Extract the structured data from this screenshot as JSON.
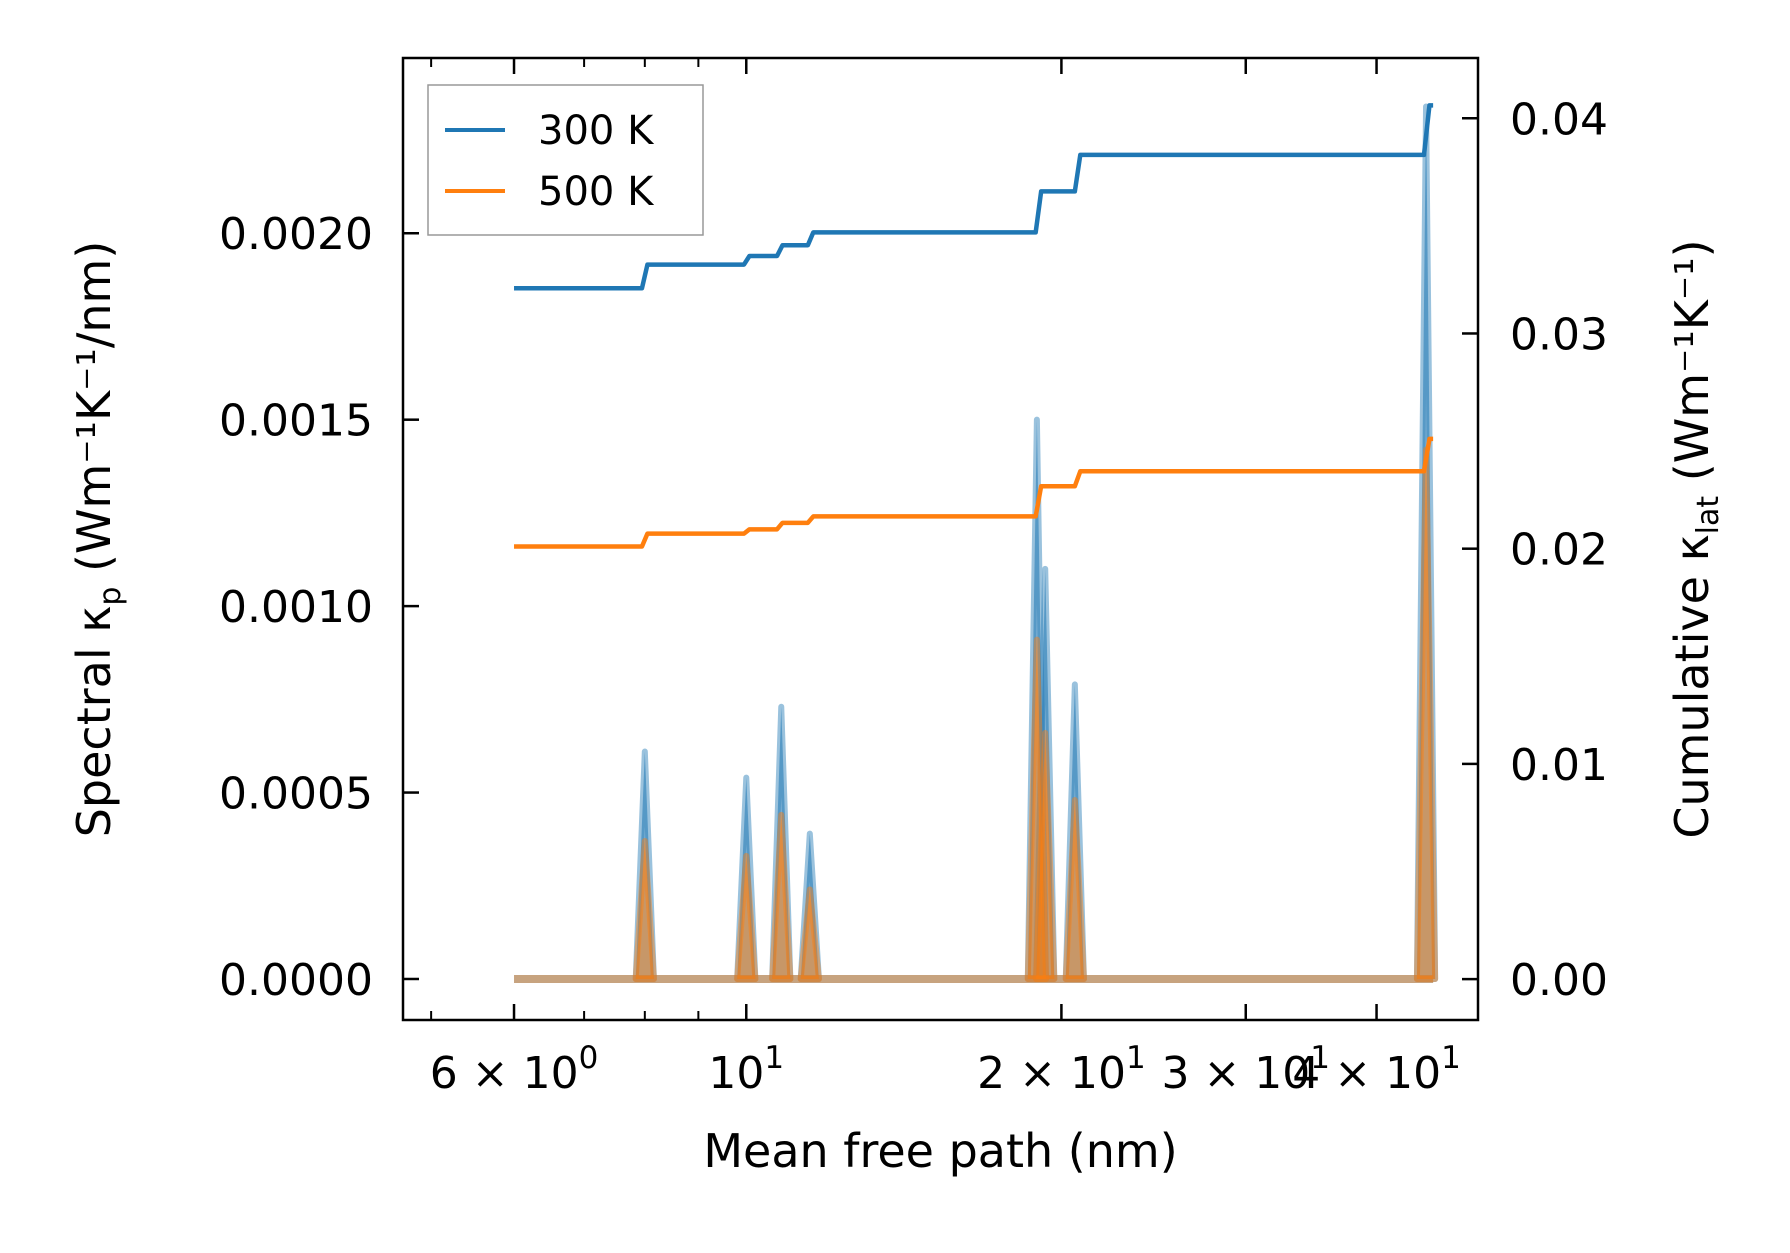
{
  "chart_data": {
    "type": "line",
    "xscale": "log",
    "xlabel": "Mean free path (nm)",
    "ylabel_left": "Spectral κ",
    "ylabel_left_sub": "p",
    "ylabel_left_units": " (Wm⁻¹K⁻¹/nm)",
    "ylabel_right": "Cumulative κ",
    "ylabel_right_sub": "lat",
    "ylabel_right_units": " (Wm⁻¹K⁻¹)",
    "xlim": [
      4.7,
      50.0
    ],
    "ylim_left": [
      -0.00011,
      0.00247
    ],
    "ylim_right": [
      -0.0019,
      0.0428
    ],
    "x_ticks": [
      {
        "value": 6,
        "base": "6 × 10",
        "exp": "0"
      },
      {
        "value": 10,
        "base": "10",
        "exp": "1"
      },
      {
        "value": 20,
        "base": "2 × 10",
        "exp": "1"
      },
      {
        "value": 30,
        "base": "3 × 10",
        "exp": "1"
      },
      {
        "value": 40,
        "base": "4 × 10",
        "exp": "1"
      }
    ],
    "x_minor_ticks": [
      5,
      7,
      8,
      9,
      50
    ],
    "y_ticks_left": [
      {
        "value": 0.0,
        "label": "0.0000"
      },
      {
        "value": 0.0005,
        "label": "0.0005"
      },
      {
        "value": 0.001,
        "label": "0.0010"
      },
      {
        "value": 0.0015,
        "label": "0.0015"
      },
      {
        "value": 0.002,
        "label": "0.0020"
      }
    ],
    "y_ticks_right": [
      {
        "value": 0.0,
        "label": "0.00"
      },
      {
        "value": 0.01,
        "label": "0.01"
      },
      {
        "value": 0.02,
        "label": "0.02"
      },
      {
        "value": 0.03,
        "label": "0.03"
      },
      {
        "value": 0.04,
        "label": "0.04"
      }
    ],
    "legend_position": "top-left",
    "series": [
      {
        "name": "300 K",
        "color": "#1f77b4",
        "cumulative_step": {
          "x_start": 6.0,
          "x_end": 45.3,
          "initial": 0.0321,
          "steps": [
            [
              7.95,
              0.0332
            ],
            [
              9.95,
              0.0336
            ],
            [
              10.7,
              0.0341
            ],
            [
              11.45,
              0.0347
            ],
            [
              18.9,
              0.0366
            ],
            [
              20.6,
              0.0383
            ],
            [
              44.4,
              0.0406
            ]
          ]
        },
        "spectral_peaks": [
          {
            "x": 8.0,
            "height": 0.00061
          },
          {
            "x": 10.0,
            "height": 0.00054
          },
          {
            "x": 10.8,
            "height": 0.00073
          },
          {
            "x": 11.5,
            "height": 0.00039
          },
          {
            "x": 18.95,
            "height": 0.0015
          },
          {
            "x": 19.3,
            "height": 0.0011
          },
          {
            "x": 20.6,
            "height": 0.00079
          },
          {
            "x": 44.6,
            "height": 0.00234
          }
        ]
      },
      {
        "name": "500 K",
        "color": "#ff7f0e",
        "cumulative_step": {
          "x_start": 6.0,
          "x_end": 45.3,
          "initial": 0.0201,
          "steps": [
            [
              7.95,
              0.0207
            ],
            [
              9.95,
              0.0209
            ],
            [
              10.7,
              0.0212
            ],
            [
              11.45,
              0.0215
            ],
            [
              18.9,
              0.0229
            ],
            [
              20.6,
              0.0236
            ],
            [
              44.4,
              0.0251
            ]
          ]
        },
        "spectral_peaks": [
          {
            "x": 8.0,
            "height": 0.00037
          },
          {
            "x": 10.0,
            "height": 0.00033
          },
          {
            "x": 10.8,
            "height": 0.00044
          },
          {
            "x": 11.5,
            "height": 0.00024
          },
          {
            "x": 18.95,
            "height": 0.00091
          },
          {
            "x": 19.3,
            "height": 0.00066
          },
          {
            "x": 20.6,
            "height": 0.00048
          },
          {
            "x": 44.6,
            "height": 0.00142
          }
        ]
      }
    ]
  }
}
